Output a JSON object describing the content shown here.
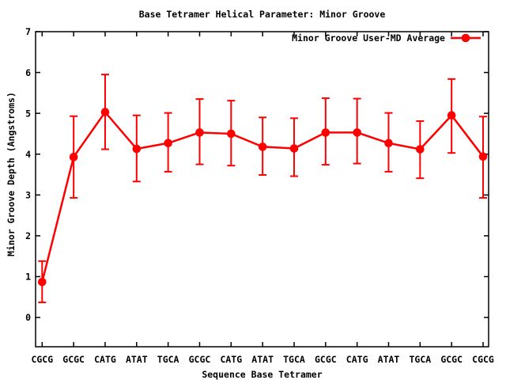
{
  "chart_data": {
    "type": "line",
    "title": "Base Tetramer Helical Parameter: Minor Groove",
    "xlabel": "Sequence Base Tetramer",
    "ylabel": "Minor Groove Depth (Angstroms)",
    "legend": {
      "label": "Minor Groove User-MD Average",
      "position": "top-right-inside",
      "marker": "filled-circle-on-line"
    },
    "colors": {
      "series": "#ff0000",
      "axis": "#000000",
      "background": "#ffffff"
    },
    "grid": false,
    "ylim": [
      0,
      7
    ],
    "yticks": [
      0,
      1,
      2,
      3,
      4,
      5,
      6,
      7
    ],
    "categories": [
      "CGCG",
      "GCGC",
      "CATG",
      "ATAT",
      "TGCA",
      "GCGC",
      "CATG",
      "ATAT",
      "TGCA",
      "GCGC",
      "CATG",
      "ATAT",
      "TGCA",
      "GCGC",
      "CGCG"
    ],
    "series": [
      {
        "name": "Minor Groove User-MD Average",
        "values": [
          0.87,
          3.93,
          5.03,
          4.13,
          4.27,
          4.53,
          4.5,
          4.18,
          4.14,
          4.53,
          4.53,
          4.27,
          4.12,
          4.95,
          3.94
        ],
        "error_low": [
          0.37,
          2.93,
          4.12,
          3.33,
          3.57,
          3.75,
          3.72,
          3.49,
          3.46,
          3.74,
          3.77,
          3.57,
          3.41,
          4.03,
          2.93
        ],
        "error_high": [
          1.38,
          4.93,
          5.95,
          4.95,
          5.01,
          5.35,
          5.31,
          4.9,
          4.88,
          5.37,
          5.36,
          5.01,
          4.81,
          5.84,
          4.92
        ]
      }
    ]
  }
}
